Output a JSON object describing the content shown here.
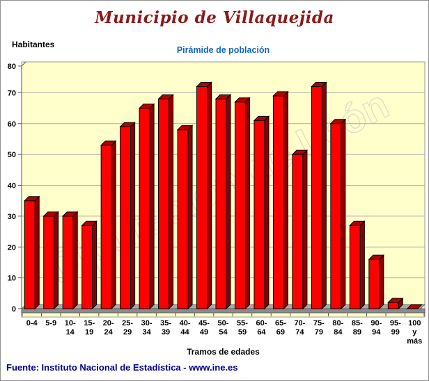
{
  "header": {
    "title": "Municipio de Villaquejida",
    "title_color": "#8B1A1A"
  },
  "chart_data": {
    "type": "bar",
    "title": "Pirámide de población",
    "subtitle_color": "#1565C0",
    "ylabel": "Habitantes",
    "xlabel": "Tramos de edades",
    "ylim": [
      0,
      80
    ],
    "yticks": [
      0,
      10,
      20,
      30,
      40,
      50,
      60,
      70,
      80
    ],
    "grid": true,
    "legend": "none",
    "categories": [
      "0-4",
      "5-9",
      "10-14",
      "15-19",
      "20-24",
      "25-29",
      "30-34",
      "35-39",
      "40-44",
      "45-49",
      "50-54",
      "55-59",
      "60-64",
      "65-69",
      "70-74",
      "75-79",
      "80-84",
      "85-89",
      "90-94",
      "95-99",
      "100 y más"
    ],
    "values": [
      35,
      30,
      30,
      27,
      53,
      59,
      65,
      68,
      58,
      72,
      68,
      67,
      61,
      69,
      50,
      72,
      60,
      27,
      16,
      2,
      0
    ],
    "tick_label_lines": [
      [
        "0-4"
      ],
      [
        "5-9"
      ],
      [
        "10-",
        "14"
      ],
      [
        "15-",
        "19"
      ],
      [
        "20-",
        "24"
      ],
      [
        "25-",
        "29"
      ],
      [
        "30-",
        "34"
      ],
      [
        "35-",
        "39"
      ],
      [
        "40-",
        "44"
      ],
      [
        "45-",
        "49"
      ],
      [
        "50-",
        "54"
      ],
      [
        "55-",
        "59"
      ],
      [
        "60-",
        "64"
      ],
      [
        "65-",
        "69"
      ],
      [
        "70-",
        "74"
      ],
      [
        "75-",
        "79"
      ],
      [
        "80-",
        "84"
      ],
      [
        "85-",
        "89"
      ],
      [
        "90-",
        "94"
      ],
      [
        "95-",
        "99"
      ],
      [
        "100",
        "y",
        "más"
      ]
    ],
    "watermark": "Diputación de León",
    "colors": {
      "plot_bg": "#FFFFCC",
      "plot_border": "#999999",
      "gridline": "#ABABAB",
      "bar_front": "#FF0000",
      "bar_side": "#8B0000",
      "bar_top": "#B40000",
      "bar_outline": "#000000",
      "floor_top": "#A8A8A8",
      "floor_front": "#8C8C8C",
      "axis_text": "#000000",
      "watermark_stroke": "#DFDFC8"
    }
  },
  "footer": {
    "source": "Fuente: Instituto Nacional de Estadística - www.ine.es",
    "color": "#00008B"
  }
}
